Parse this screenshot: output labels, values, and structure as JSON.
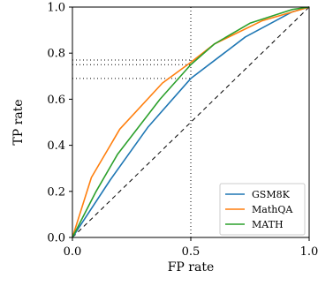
{
  "chart_data": {
    "type": "line",
    "xlabel": "FP rate",
    "ylabel": "TP rate",
    "xlim": [
      0,
      1
    ],
    "ylim": [
      0,
      1
    ],
    "xticks": [
      0.0,
      0.5,
      1.0
    ],
    "xtick_labels": [
      "0.0",
      "0.5",
      "1.0"
    ],
    "yticks": [
      0.0,
      0.2,
      0.4,
      0.6,
      0.8,
      1.0
    ],
    "ytick_labels": [
      "0.0",
      "0.2",
      "0.4",
      "0.6",
      "0.8",
      "1.0"
    ],
    "grid": false,
    "legend_position": "bottom-right",
    "series": [
      {
        "name": "GSM8K",
        "color": "#1f77b4",
        "x": [
          0.0,
          0.16,
          0.32,
          0.5,
          0.73,
          0.93,
          1.0
        ],
        "y": [
          0.0,
          0.25,
          0.48,
          0.69,
          0.87,
          0.98,
          1.0
        ]
      },
      {
        "name": "MathQA",
        "color": "#ff7f0e",
        "x": [
          0.0,
          0.08,
          0.2,
          0.38,
          0.5,
          0.6,
          0.8,
          1.0
        ],
        "y": [
          0.0,
          0.26,
          0.47,
          0.67,
          0.76,
          0.84,
          0.94,
          1.0
        ]
      },
      {
        "name": "MATH",
        "color": "#2ca02c",
        "x": [
          0.0,
          0.1,
          0.19,
          0.37,
          0.5,
          0.6,
          0.75,
          0.93,
          1.0
        ],
        "y": [
          0.0,
          0.2,
          0.36,
          0.6,
          0.75,
          0.84,
          0.93,
          0.99,
          1.0
        ]
      }
    ],
    "reference_lines": {
      "diagonal": {
        "style": "dashed",
        "color": "#000000"
      },
      "vertical_x": 0.5,
      "horizontal_y": [
        0.69,
        0.75,
        0.77
      ]
    }
  }
}
